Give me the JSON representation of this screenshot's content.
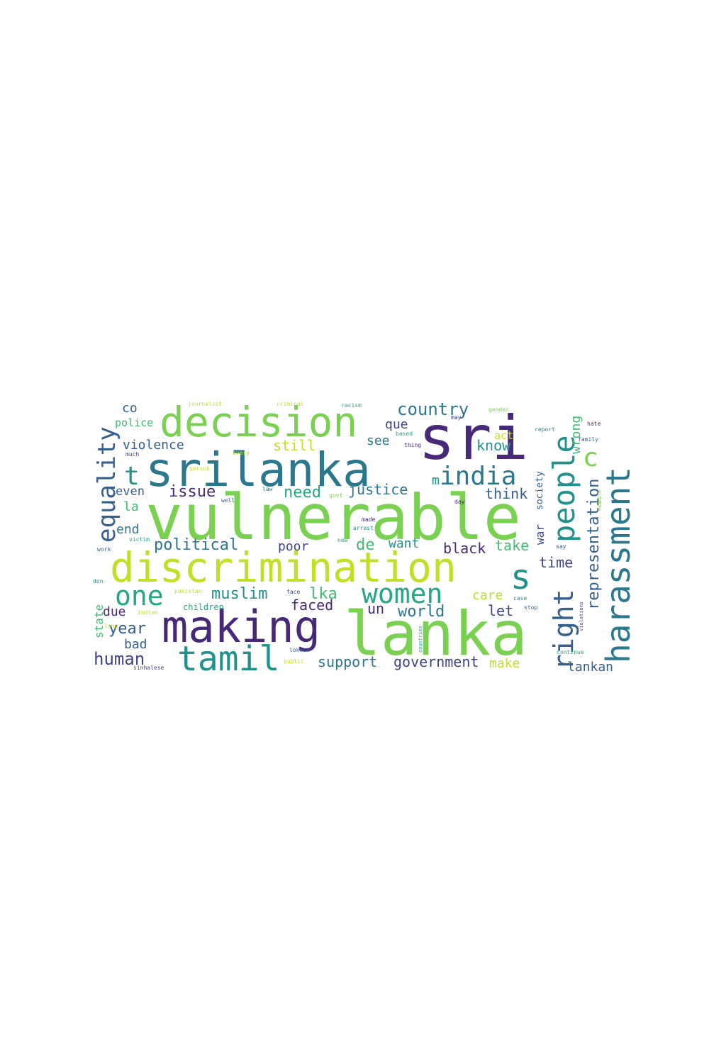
{
  "palette": {
    "yellow": "#c2df23",
    "lime": "#7ad151",
    "green": "#3fbc73",
    "teal": "#22a884",
    "cyan": "#21918c",
    "blue": "#2a788e",
    "indigo": "#355f8d",
    "violet": "#414487",
    "purple": "#482878",
    "dark": "#440154",
    "pale": "#dde318"
  },
  "words": [
    {
      "text": "vulnerable",
      "color": "lime"
    },
    {
      "text": "lanka",
      "color": "lime"
    },
    {
      "text": "sri",
      "color": "purple"
    },
    {
      "text": "srilanka",
      "color": "blue"
    },
    {
      "text": "discrimination",
      "color": "yellow"
    },
    {
      "text": "making",
      "color": "purple"
    },
    {
      "text": "decision",
      "color": "lime"
    },
    {
      "text": "harassment",
      "color": "blue"
    },
    {
      "text": "people",
      "color": "cyan"
    },
    {
      "text": "tamil",
      "color": "cyan"
    },
    {
      "text": "s",
      "color": "cyan"
    },
    {
      "text": "right",
      "color": "indigo"
    },
    {
      "text": "equality",
      "color": "indigo"
    },
    {
      "text": "women",
      "color": "teal"
    },
    {
      "text": "one",
      "color": "teal"
    },
    {
      "text": "india",
      "color": "blue"
    },
    {
      "text": "t",
      "color": "cyan"
    },
    {
      "text": "c",
      "color": "lime"
    },
    {
      "text": "country",
      "color": "blue"
    },
    {
      "text": "representation",
      "color": "indigo"
    },
    {
      "text": "muslim",
      "color": "cyan"
    },
    {
      "text": "lka",
      "color": "green"
    },
    {
      "text": "human",
      "color": "violet"
    },
    {
      "text": "tamil",
      "color": "cyan"
    },
    {
      "text": "year",
      "color": "indigo"
    },
    {
      "text": "political",
      "color": "blue"
    },
    {
      "text": "issue",
      "color": "purple"
    },
    {
      "text": "need",
      "color": "teal"
    },
    {
      "text": "justice",
      "color": "blue"
    },
    {
      "text": "world",
      "color": "blue"
    },
    {
      "text": "government",
      "color": "violet"
    },
    {
      "text": "support",
      "color": "blue"
    },
    {
      "text": "lankan",
      "color": "indigo"
    },
    {
      "text": "faced",
      "color": "purple"
    },
    {
      "text": "violence",
      "color": "indigo"
    },
    {
      "text": "still",
      "color": "yellow"
    },
    {
      "text": "wrong",
      "color": "green"
    },
    {
      "text": "know",
      "color": "cyan"
    },
    {
      "text": "think",
      "color": "indigo"
    },
    {
      "text": "time",
      "color": "violet"
    },
    {
      "text": "black",
      "color": "purple"
    },
    {
      "text": "take",
      "color": "green"
    },
    {
      "text": "want",
      "color": "cyan"
    },
    {
      "text": "de",
      "color": "green"
    },
    {
      "text": "poor",
      "color": "violet"
    },
    {
      "text": "un",
      "color": "purple"
    },
    {
      "text": "let",
      "color": "violet"
    },
    {
      "text": "care",
      "color": "yellow"
    },
    {
      "text": "make",
      "color": "yellow"
    },
    {
      "text": "bad",
      "color": "indigo"
    },
    {
      "text": "due",
      "color": "purple"
    },
    {
      "text": "end",
      "color": "blue"
    },
    {
      "text": "even",
      "color": "indigo"
    },
    {
      "text": "la",
      "color": "green"
    },
    {
      "text": "co",
      "color": "indigo"
    },
    {
      "text": "police",
      "color": "green"
    },
    {
      "text": "que",
      "color": "violet"
    },
    {
      "text": "see",
      "color": "blue"
    },
    {
      "text": "act",
      "color": "yellow"
    },
    {
      "text": "m",
      "color": "cyan"
    },
    {
      "text": "state",
      "color": "green"
    },
    {
      "text": "children",
      "color": "teal"
    },
    {
      "text": "war",
      "color": "violet"
    },
    {
      "text": "society",
      "color": "indigo"
    },
    {
      "text": "journalist",
      "color": "yellow"
    },
    {
      "text": "criminal",
      "color": "yellow"
    },
    {
      "text": "racism",
      "color": "teal"
    },
    {
      "text": "gender",
      "color": "lime"
    },
    {
      "text": "hate",
      "color": "purple"
    },
    {
      "text": "report",
      "color": "blue"
    },
    {
      "text": "family",
      "color": "indigo"
    },
    {
      "text": "based",
      "color": "teal"
    },
    {
      "text": "thing",
      "color": "purple"
    },
    {
      "text": "every",
      "color": "yellow"
    },
    {
      "text": "person",
      "color": "yellow"
    },
    {
      "text": "much",
      "color": "violet"
    },
    {
      "text": "law",
      "color": "blue"
    },
    {
      "text": "govt",
      "color": "lime"
    },
    {
      "text": "well",
      "color": "indigo"
    },
    {
      "text": "day",
      "color": "purple"
    },
    {
      "text": "made",
      "color": "purple"
    },
    {
      "text": "arrest",
      "color": "cyan"
    },
    {
      "text": "new",
      "color": "teal"
    },
    {
      "text": "victim",
      "color": "teal"
    },
    {
      "text": "work",
      "color": "indigo"
    },
    {
      "text": "say",
      "color": "indigo"
    },
    {
      "text": "example",
      "color": "lime"
    },
    {
      "text": "may",
      "color": "violet"
    },
    {
      "text": "don",
      "color": "cyan"
    },
    {
      "text": "pakistan",
      "color": "yellow"
    },
    {
      "text": "face",
      "color": "violet"
    },
    {
      "text": "case",
      "color": "cyan"
    },
    {
      "text": "stop",
      "color": "indigo"
    },
    {
      "text": "indian",
      "color": "yellow"
    },
    {
      "text": "long",
      "color": "yellow"
    },
    {
      "text": "countries",
      "color": "teal"
    },
    {
      "text": "violations",
      "color": "violet"
    },
    {
      "text": "lokesh",
      "color": "indigo"
    },
    {
      "text": "public",
      "color": "yellow"
    },
    {
      "text": "continue",
      "color": "teal"
    },
    {
      "text": "sinhalese",
      "color": "violet"
    }
  ]
}
